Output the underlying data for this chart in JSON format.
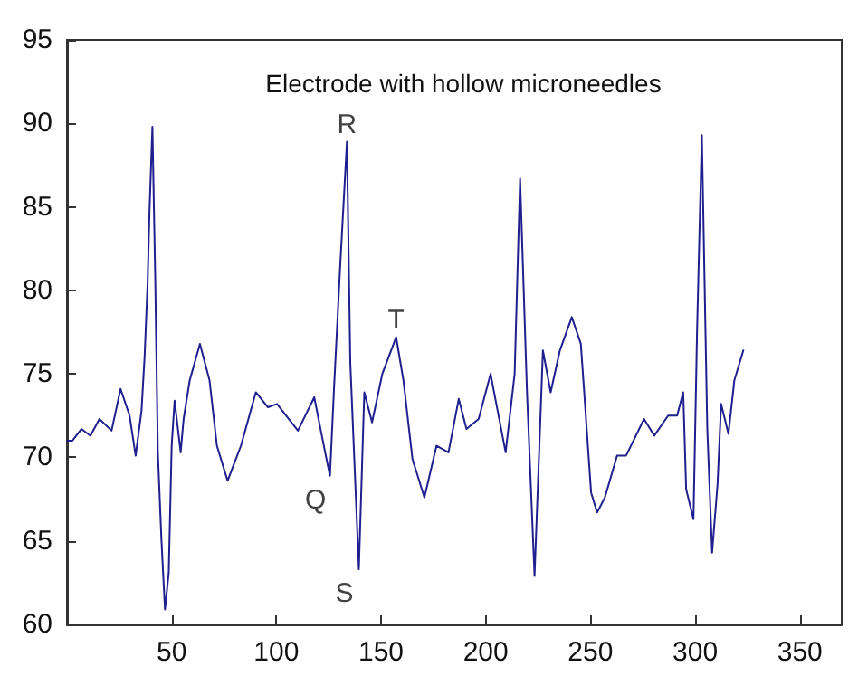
{
  "chart_data": {
    "type": "line",
    "title": "Electrode with hollow microneedles",
    "xlim": [
      0,
      370
    ],
    "xticks": [
      50,
      100,
      150,
      200,
      250,
      300,
      350
    ],
    "ylim": [
      60,
      95
    ],
    "yticks": [
      60,
      65,
      70,
      75,
      80,
      85,
      90,
      95
    ],
    "grid": false,
    "marker": "none",
    "line_style": "solid",
    "annotations": [
      {
        "text": "R",
        "x": 133.7,
        "y": 88.9
      },
      {
        "text": "Q",
        "x": 125.6,
        "y": 68.9
      },
      {
        "text": "S",
        "x": 139.4,
        "y": 63.3
      },
      {
        "text": "T",
        "x": 157.2,
        "y": 77.2
      }
    ],
    "series": [
      {
        "color": "#1f1f8f",
        "x": [
          0,
          2.6,
          6.9,
          11.2,
          15.5,
          21.3,
          25.6,
          29.9,
          32.8,
          35.6,
          37.1,
          38.5,
          39.4,
          40.8,
          42.2,
          43.4,
          45.1,
          46.8,
          48.6,
          50,
          51.4,
          54.3,
          55.7,
          58.6,
          63.5,
          68.1,
          71.6,
          76.7,
          83.1,
          90.2,
          96,
          100.3,
          110.3,
          118.1,
          123.3,
          125.6,
          127.6,
          130.5,
          133.7,
          135.3,
          139.4,
          142,
          145.7,
          150.6,
          157.2,
          160.7,
          165,
          170.7,
          176.5,
          182.2,
          187.1,
          190.8,
          196.6,
          202.3,
          209.5,
          213.8,
          216.4,
          219.7,
          223.3,
          227.3,
          231,
          235.4,
          241.1,
          245.4,
          246.8,
          250.3,
          253.2,
          256.9,
          262.7,
          267,
          275.6,
          280.5,
          287.1,
          291.4,
          294.3,
          295.7,
          299.2,
          300.9,
          303.2,
          305.8,
          308.1,
          310.7,
          312.4,
          315.9,
          318.7,
          323
        ],
        "values": [
          71,
          71,
          71.7,
          71.3,
          72.3,
          71.6,
          74.1,
          72.5,
          70.1,
          72.8,
          76.1,
          80.4,
          84.7,
          89.8,
          80.4,
          70.3,
          65.1,
          60.9,
          63.1,
          70.7,
          73.4,
          70.3,
          72.3,
          74.6,
          76.8,
          74.6,
          70.7,
          68.6,
          70.7,
          73.9,
          73,
          73.2,
          71.6,
          73.6,
          70.3,
          68.9,
          74.3,
          81.5,
          88.9,
          75.7,
          63.3,
          73.9,
          72.1,
          75,
          77.2,
          74.6,
          69.9,
          67.6,
          70.7,
          70.3,
          73.5,
          71.7,
          72.3,
          75,
          70.3,
          75,
          86.7,
          73.9,
          62.9,
          76.4,
          73.9,
          76.4,
          78.4,
          76.8,
          74.3,
          67.9,
          66.7,
          67.6,
          70.1,
          70.1,
          72.3,
          71.3,
          72.5,
          72.5,
          73.9,
          68.1,
          66.3,
          77.5,
          89.3,
          71.7,
          64.3,
          68.4,
          73.2,
          71.4,
          74.6,
          76.4
        ]
      }
    ]
  }
}
